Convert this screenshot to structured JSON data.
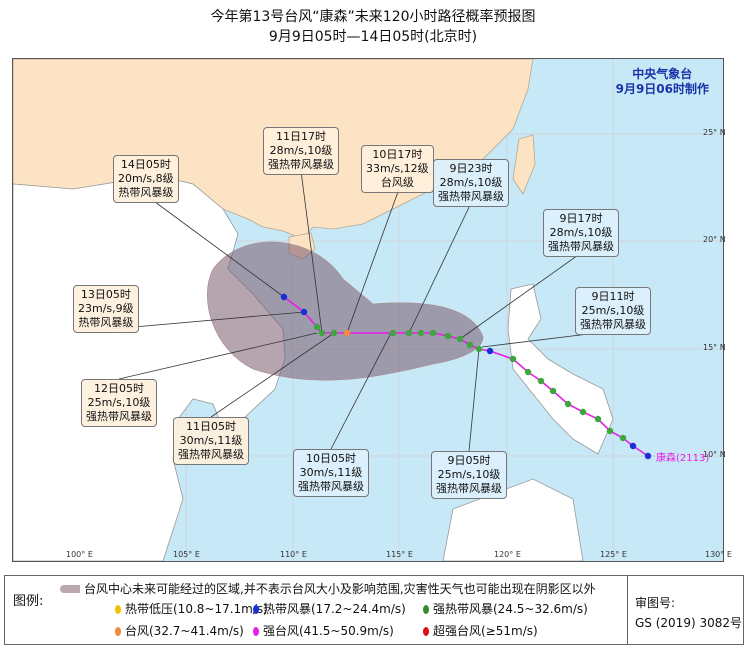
{
  "title": "今年第13号台风“康森”未来120小时路径概率预报图",
  "subtitle": "9月9日05时—14日05时(北京时)",
  "agency": {
    "name": "中央气象台",
    "issued": "9月9日06时制作"
  },
  "typhoon_name": "康森(2113)",
  "lon_ticks": [
    "100° E",
    "105° E",
    "110° E",
    "115° E",
    "120° E",
    "125° E",
    "130° E"
  ],
  "lat_ticks": [
    "25° N",
    "20° N",
    "15° N",
    "10° N"
  ],
  "labels": [
    {
      "time": "14日05时",
      "wind": "20m/s,8级",
      "level": "热带风暴级"
    },
    {
      "time": "11日17时",
      "wind": "28m/s,10级",
      "level": "强热带风暴级"
    },
    {
      "time": "10日17时",
      "wind": "33m/s,12级",
      "level": "台风级"
    },
    {
      "time": "9日23时",
      "wind": "28m/s,10级",
      "level": "强热带风暴级"
    },
    {
      "time": "9日17时",
      "wind": "28m/s,10级",
      "level": "强热带风暴级"
    },
    {
      "time": "9日11时",
      "wind": "25m/s,10级",
      "level": "强热带风暴级"
    },
    {
      "time": "13日05时",
      "wind": "23m/s,9级",
      "level": "热带风暴级"
    },
    {
      "time": "12日05时",
      "wind": "25m/s,10级",
      "level": "强热带风暴级"
    },
    {
      "time": "11日05时",
      "wind": "30m/s,11级",
      "level": "强热带风暴级"
    },
    {
      "time": "10日05时",
      "wind": "30m/s,11级",
      "level": "强热带风暴级"
    },
    {
      "time": "9日05时",
      "wind": "25m/s,10级",
      "level": "强热带风暴级"
    }
  ],
  "legend": {
    "title": "图例:",
    "cone": "台风中心未来可能经过的区域,并不表示台风大小及影响范围,灾害性天气也可能出现在阴影区以外",
    "items": [
      {
        "label": "热带低压(10.8~17.1m/s)",
        "color": "#f2c200"
      },
      {
        "label": "热带风暴(17.2~24.4m/s)",
        "color": "#1a2fd6"
      },
      {
        "label": "强热带风暴(24.5~32.6m/s)",
        "color": "#2e8b2e"
      },
      {
        "label": "台风(32.7~41.4m/s)",
        "color": "#f08a3c"
      },
      {
        "label": "强台风(41.5~50.9m/s)",
        "color": "#e81ee8"
      },
      {
        "label": "超强台风(≥51m/s)",
        "color": "#e01010"
      }
    ],
    "approval_label": "审图号:",
    "approval_no": "GS (2019) 3082号"
  }
}
